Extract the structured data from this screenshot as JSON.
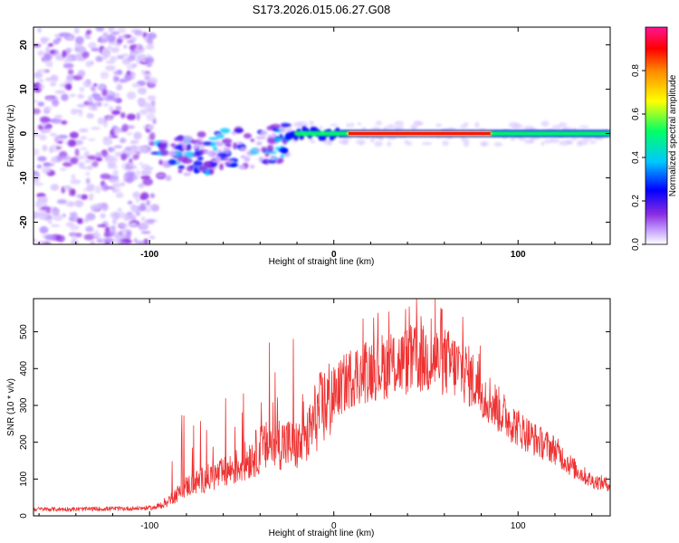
{
  "chart_data": [
    {
      "type": "heatmap",
      "title": "S173.2026.015.06.27.G08",
      "xlabel": "Height of straight line (km)",
      "ylabel": "Frequency (Hz)",
      "xlim": [
        -163,
        150
      ],
      "ylim": [
        -25,
        24
      ],
      "xticks": [
        -100,
        0,
        100
      ],
      "yticks": [
        -20,
        -10,
        0,
        10,
        20
      ],
      "colorbar": {
        "label": "Normalized spectral amplitude",
        "range": [
          0,
          1
        ],
        "ticks": [
          "0.0",
          "0.2",
          "0.4",
          "0.6",
          "0.8"
        ],
        "colors": [
          "#ffffff",
          "#c8a8ff",
          "#8a2be2",
          "#0000ff",
          "#00c8ff",
          "#00ff66",
          "#ffff00",
          "#ff8800",
          "#ff0000",
          "#ff1493"
        ]
      },
      "features": {
        "noise_region_km": [
          -163,
          -97
        ],
        "scatter_region_km": [
          -97,
          -25
        ],
        "ridge_start_km": -25,
        "ridge_peak_km": [
          8,
          85
        ],
        "ridge_frequency_hz": 0
      }
    },
    {
      "type": "line",
      "title": "",
      "xlabel": "Height of straight line (km)",
      "ylabel": "SNR (10 * v/v)",
      "xlim": [
        -163,
        150
      ],
      "ylim": [
        0,
        590
      ],
      "xticks": [
        -100,
        0,
        100
      ],
      "yticks": [
        0,
        100,
        200,
        300,
        400,
        500
      ],
      "series": [
        {
          "name": "SNR",
          "color": "#ee3333",
          "envelope_x": [
            -163,
            -140,
            -110,
            -97,
            -90,
            -80,
            -70,
            -60,
            -50,
            -40,
            -30,
            -20,
            -15,
            -10,
            0,
            10,
            20,
            30,
            40,
            50,
            60,
            70,
            80,
            90,
            100,
            110,
            120,
            130,
            140,
            150
          ],
          "envelope_y": [
            18,
            18,
            20,
            22,
            40,
            80,
            100,
            115,
            140,
            180,
            200,
            190,
            200,
            270,
            330,
            380,
            400,
            410,
            420,
            425,
            420,
            395,
            345,
            285,
            240,
            205,
            180,
            130,
            95,
            85
          ],
          "spikes": [
            {
              "x": -35,
              "y": 470
            },
            {
              "x": -22,
              "y": 480
            },
            {
              "x": -17,
              "y": 330
            },
            {
              "x": 30,
              "y": 520
            },
            {
              "x": 45,
              "y": 590
            },
            {
              "x": 55,
              "y": 590
            },
            {
              "x": 70,
              "y": 540
            }
          ]
        }
      ]
    }
  ]
}
